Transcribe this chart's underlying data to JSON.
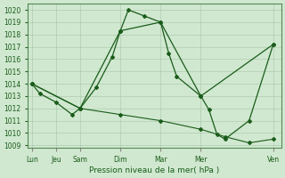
{
  "xlabel": "Pression niveau de la mer( hPa )",
  "background_color": "#d0e8d0",
  "line_color": "#1a5c1a",
  "grid_color": "#b0ccb0",
  "ylim": [
    1008.8,
    1020.5
  ],
  "yticks": [
    1009,
    1010,
    1011,
    1012,
    1013,
    1014,
    1015,
    1016,
    1017,
    1018,
    1019,
    1020
  ],
  "day_labels": [
    "Lun",
    "Jeu",
    "Sam",
    "Dim",
    "Mar",
    "Mer",
    "Ven"
  ],
  "day_positions": [
    0,
    3,
    6,
    11,
    16,
    21,
    30
  ],
  "xlim": [
    -0.5,
    31
  ],
  "series1_x": [
    0,
    1,
    3,
    5,
    6,
    8,
    10,
    11,
    12,
    14,
    16,
    17,
    18,
    21,
    22,
    23,
    24,
    27,
    30
  ],
  "series1_y": [
    1014.0,
    1013.2,
    1012.5,
    1011.5,
    1012.0,
    1013.7,
    1016.2,
    1018.3,
    1020.0,
    1019.5,
    1019.0,
    1016.5,
    1014.6,
    1013.0,
    1011.9,
    1009.9,
    1009.5,
    1011.0,
    1017.2
  ],
  "series2_x": [
    0,
    6,
    11,
    16,
    21,
    30
  ],
  "series2_y": [
    1014.0,
    1012.0,
    1018.3,
    1019.0,
    1013.0,
    1017.2
  ],
  "series3_x": [
    0,
    6,
    11,
    16,
    21,
    24,
    27,
    30
  ],
  "series3_y": [
    1014.0,
    1012.0,
    1011.5,
    1011.0,
    1010.3,
    1009.7,
    1009.2,
    1009.5
  ],
  "tick_fontsize": 5.5,
  "xlabel_fontsize": 6.5
}
